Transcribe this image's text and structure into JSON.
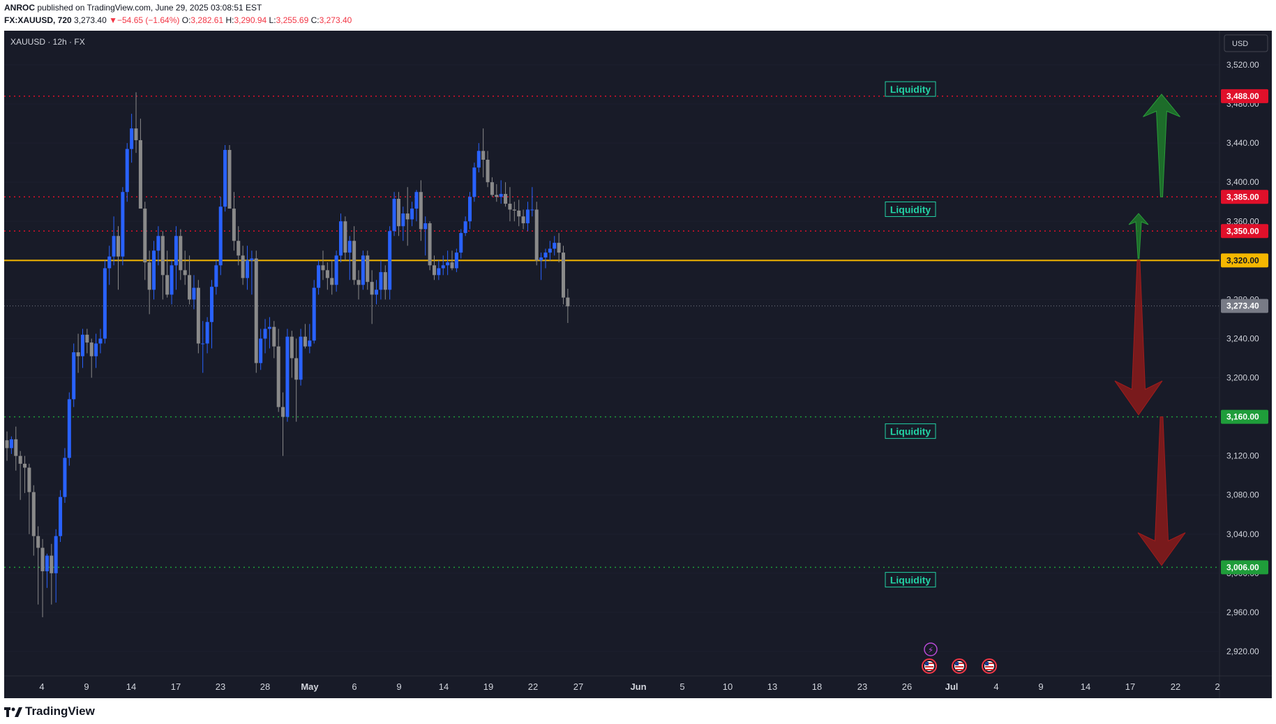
{
  "header": {
    "author": "ANROC",
    "published_text": "published on TradingView.com, June 29, 2025 03:08:51 EST",
    "symbol_line": "FX:XAUUSD, 720",
    "last": "3,273.40",
    "change": "−54.65 (−1.64%)",
    "o_label": "O:",
    "o": "3,282.61",
    "h_label": "H:",
    "h": "3,290.94",
    "l_label": "L:",
    "l": "3,255.69",
    "c_label": "C:",
    "c": "3,273.40"
  },
  "legend": {
    "title": "XAUUSD · 12h · FX"
  },
  "currency": "USD",
  "footer": {
    "brand": "TradingView"
  },
  "colors": {
    "background": "#181b28",
    "up": "#2962ff",
    "down": "#8a8a8a",
    "resistance": "#e0102a",
    "support": "#1f9d3a",
    "key_level": "#f5b700",
    "liquidity": "#22d3a5"
  },
  "chart_data": {
    "type": "candlestick",
    "y_axis": {
      "ylim": [
        2895,
        3555
      ],
      "ticks": [
        "3,520.00",
        "3,480.00",
        "3,440.00",
        "3,400.00",
        "3,360.00",
        "3,320.00",
        "3,280.00",
        "3,240.00",
        "3,200.00",
        "3,160.00",
        "3,120.00",
        "3,080.00",
        "3,040.00",
        "3,000.00",
        "2,960.00",
        "2,920.00"
      ],
      "tick_values": [
        3520,
        3480,
        3440,
        3400,
        3360,
        3320,
        3280,
        3240,
        3200,
        3160,
        3120,
        3080,
        3040,
        3000,
        2960,
        2920
      ]
    },
    "x_axis": {
      "labels": [
        "4",
        "9",
        "14",
        "17",
        "23",
        "28",
        "May",
        "6",
        "9",
        "14",
        "19",
        "22",
        "27",
        "Jun",
        "5",
        "10",
        "13",
        "18",
        "23",
        "26",
        "Jul",
        "4",
        "9",
        "14",
        "17",
        "22",
        "2"
      ],
      "bold_labels": [
        "May",
        "Jun",
        "Jul"
      ]
    },
    "levels": [
      {
        "value": 3488,
        "label": "3,488.00",
        "style": "resistance"
      },
      {
        "value": 3385,
        "label": "3,385.00",
        "style": "resistance"
      },
      {
        "value": 3350,
        "label": "3,350.00",
        "style": "resistance"
      },
      {
        "value": 3320,
        "label": "3,320.00",
        "style": "key"
      },
      {
        "value": 3160,
        "label": "3,160.00",
        "style": "support"
      },
      {
        "value": 3006,
        "label": "3,006.00",
        "style": "support"
      }
    ],
    "last_price": {
      "value": 3273.4,
      "label": "3,273.40"
    },
    "liquidity_labels": [
      {
        "text": "Liquidity",
        "value": 3495
      },
      {
        "text": "Liquidity",
        "value": 3372
      },
      {
        "text": "Liquidity",
        "value": 3145
      },
      {
        "text": "Liquidity",
        "value": 2993
      }
    ],
    "arrows": [
      {
        "direction": "up",
        "color": "green",
        "from": 3385,
        "to": 3490
      },
      {
        "direction": "up",
        "color": "green",
        "from": 3322,
        "to": 3368
      },
      {
        "direction": "down",
        "color": "red",
        "from": 3320,
        "to": 3162
      },
      {
        "direction": "down",
        "color": "red",
        "from": 3160,
        "to": 3008
      }
    ],
    "candles": [
      [
        3136,
        3145,
        3115,
        3128
      ],
      [
        3128,
        3140,
        3122,
        3137
      ],
      [
        3137,
        3150,
        3105,
        3120
      ],
      [
        3120,
        3125,
        3075,
        3112
      ],
      [
        3112,
        3120,
        3082,
        3108
      ],
      [
        3108,
        3112,
        3040,
        3083
      ],
      [
        3083,
        3090,
        3018,
        3038
      ],
      [
        3038,
        3048,
        2968,
        3026
      ],
      [
        3026,
        3035,
        2955,
        3002
      ],
      [
        3002,
        3020,
        2985,
        3018
      ],
      [
        3018,
        3030,
        2968,
        3000
      ],
      [
        3000,
        3045,
        2970,
        3038
      ],
      [
        3038,
        3085,
        3032,
        3078
      ],
      [
        3078,
        3128,
        3072,
        3118
      ],
      [
        3118,
        3185,
        3110,
        3178
      ],
      [
        3178,
        3235,
        3170,
        3226
      ],
      [
        3226,
        3245,
        3205,
        3222
      ],
      [
        3222,
        3250,
        3210,
        3244
      ],
      [
        3244,
        3250,
        3225,
        3236
      ],
      [
        3236,
        3240,
        3200,
        3222
      ],
      [
        3222,
        3245,
        3210,
        3235
      ],
      [
        3235,
        3250,
        3225,
        3240
      ],
      [
        3240,
        3320,
        3235,
        3312
      ],
      [
        3312,
        3335,
        3295,
        3324
      ],
      [
        3324,
        3365,
        3315,
        3345
      ],
      [
        3345,
        3355,
        3290,
        3324
      ],
      [
        3324,
        3395,
        3315,
        3390
      ],
      [
        3390,
        3440,
        3380,
        3434
      ],
      [
        3434,
        3470,
        3420,
        3455
      ],
      [
        3455,
        3492,
        3430,
        3443
      ],
      [
        3443,
        3465,
        3375,
        3373
      ],
      [
        3373,
        3380,
        3300,
        3318
      ],
      [
        3318,
        3330,
        3265,
        3290
      ],
      [
        3290,
        3340,
        3280,
        3330
      ],
      [
        3330,
        3355,
        3315,
        3345
      ],
      [
        3345,
        3350,
        3280,
        3305
      ],
      [
        3305,
        3330,
        3282,
        3285
      ],
      [
        3285,
        3320,
        3275,
        3315
      ],
      [
        3315,
        3355,
        3290,
        3345
      ],
      [
        3345,
        3352,
        3300,
        3310
      ],
      [
        3310,
        3330,
        3295,
        3305
      ],
      [
        3305,
        3325,
        3275,
        3280
      ],
      [
        3280,
        3305,
        3270,
        3292
      ],
      [
        3292,
        3300,
        3225,
        3235
      ],
      [
        3235,
        3258,
        3205,
        3235
      ],
      [
        3235,
        3262,
        3225,
        3257
      ],
      [
        3257,
        3300,
        3230,
        3293
      ],
      [
        3293,
        3320,
        3285,
        3315
      ],
      [
        3315,
        3385,
        3305,
        3375
      ],
      [
        3375,
        3438,
        3370,
        3433
      ],
      [
        3433,
        3438,
        3378,
        3373
      ],
      [
        3373,
        3390,
        3330,
        3340
      ],
      [
        3340,
        3355,
        3315,
        3325
      ],
      [
        3325,
        3335,
        3295,
        3302
      ],
      [
        3302,
        3335,
        3290,
        3320
      ],
      [
        3320,
        3330,
        3285,
        3322
      ],
      [
        3322,
        3330,
        3205,
        3215
      ],
      [
        3215,
        3250,
        3208,
        3240
      ],
      [
        3240,
        3260,
        3225,
        3250
      ],
      [
        3250,
        3262,
        3230,
        3252
      ],
      [
        3252,
        3258,
        3220,
        3232
      ],
      [
        3232,
        3250,
        3165,
        3170
      ],
      [
        3170,
        3185,
        3120,
        3160
      ],
      [
        3160,
        3250,
        3155,
        3242
      ],
      [
        3242,
        3248,
        3200,
        3220
      ],
      [
        3220,
        3240,
        3155,
        3198
      ],
      [
        3198,
        3250,
        3192,
        3242
      ],
      [
        3242,
        3255,
        3230,
        3232
      ],
      [
        3232,
        3255,
        3225,
        3238
      ],
      [
        3238,
        3300,
        3235,
        3292
      ],
      [
        3292,
        3320,
        3285,
        3315
      ],
      [
        3315,
        3330,
        3300,
        3310
      ],
      [
        3310,
        3318,
        3290,
        3302
      ],
      [
        3302,
        3320,
        3285,
        3295
      ],
      [
        3295,
        3330,
        3288,
        3325
      ],
      [
        3325,
        3368,
        3318,
        3360
      ],
      [
        3360,
        3365,
        3320,
        3328
      ],
      [
        3328,
        3345,
        3300,
        3340
      ],
      [
        3340,
        3355,
        3295,
        3300
      ],
      [
        3300,
        3310,
        3280,
        3295
      ],
      [
        3295,
        3330,
        3290,
        3325
      ],
      [
        3325,
        3330,
        3290,
        3298
      ],
      [
        3298,
        3310,
        3255,
        3285
      ],
      [
        3285,
        3300,
        3275,
        3290
      ],
      [
        3290,
        3320,
        3280,
        3308
      ],
      [
        3308,
        3315,
        3280,
        3290
      ],
      [
        3290,
        3355,
        3280,
        3350
      ],
      [
        3350,
        3390,
        3345,
        3383
      ],
      [
        3383,
        3390,
        3345,
        3355
      ],
      [
        3355,
        3375,
        3340,
        3368
      ],
      [
        3368,
        3395,
        3335,
        3362
      ],
      [
        3362,
        3380,
        3355,
        3373
      ],
      [
        3373,
        3392,
        3360,
        3390
      ],
      [
        3390,
        3402,
        3340,
        3352
      ],
      [
        3352,
        3365,
        3325,
        3358
      ],
      [
        3358,
        3360,
        3310,
        3315
      ],
      [
        3315,
        3325,
        3300,
        3305
      ],
      [
        3305,
        3320,
        3300,
        3312
      ],
      [
        3312,
        3325,
        3305,
        3315
      ],
      [
        3315,
        3330,
        3305,
        3318
      ],
      [
        3318,
        3330,
        3310,
        3312
      ],
      [
        3312,
        3332,
        3308,
        3328
      ],
      [
        3328,
        3352,
        3322,
        3348
      ],
      [
        3348,
        3365,
        3345,
        3360
      ],
      [
        3360,
        3390,
        3352,
        3385
      ],
      [
        3385,
        3420,
        3380,
        3415
      ],
      [
        3415,
        3440,
        3410,
        3432
      ],
      [
        3432,
        3455,
        3405,
        3423
      ],
      [
        3423,
        3432,
        3395,
        3400
      ],
      [
        3400,
        3405,
        3385,
        3387
      ],
      [
        3387,
        3398,
        3380,
        3385
      ],
      [
        3385,
        3402,
        3378,
        3388
      ],
      [
        3388,
        3400,
        3375,
        3378
      ],
      [
        3378,
        3395,
        3360,
        3372
      ],
      [
        3372,
        3380,
        3360,
        3371
      ],
      [
        3371,
        3382,
        3355,
        3365
      ],
      [
        3365,
        3372,
        3352,
        3358
      ],
      [
        3358,
        3380,
        3350,
        3372
      ],
      [
        3372,
        3395,
        3365,
        3372
      ],
      [
        3372,
        3380,
        3315,
        3320
      ],
      [
        3320,
        3328,
        3300,
        3323
      ],
      [
        3323,
        3332,
        3312,
        3328
      ],
      [
        3328,
        3340,
        3320,
        3332
      ],
      [
        3332,
        3345,
        3325,
        3338
      ],
      [
        3338,
        3348,
        3318,
        3328
      ],
      [
        3328,
        3335,
        3275,
        3282
      ],
      [
        3282,
        3291,
        3256,
        3273
      ]
    ]
  }
}
